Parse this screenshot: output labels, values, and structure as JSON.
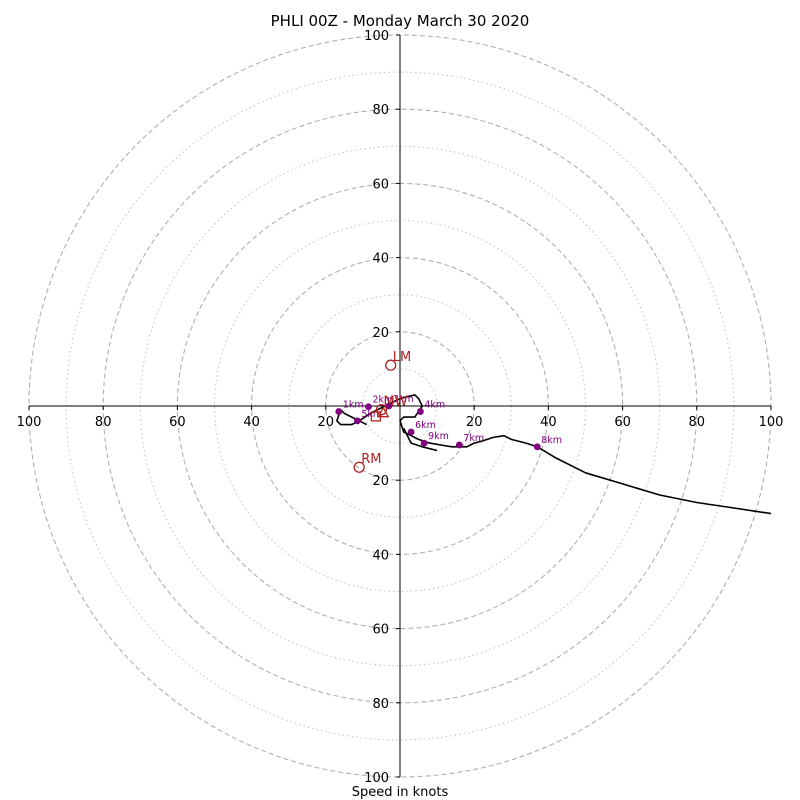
{
  "chart_data": {
    "type": "scatter",
    "subtype": "hodograph",
    "title": "PHLI 00Z - Monday March 30 2020",
    "xlabel": "Speed in knots",
    "xlim": [
      -100,
      100
    ],
    "ylim": [
      -100,
      100
    ],
    "ring_major": [
      20,
      40,
      60,
      80,
      100
    ],
    "ring_minor": [
      10,
      30,
      50,
      70,
      90
    ],
    "x_ticks": [
      -100,
      -80,
      -60,
      -40,
      -20,
      20,
      40,
      60,
      80,
      100
    ],
    "x_tick_labels": [
      "100",
      "80",
      "60",
      "40",
      "20",
      "20",
      "40",
      "60",
      "80",
      "100"
    ],
    "y_ticks": [
      100,
      80,
      60,
      40,
      20,
      -20,
      -40,
      -60,
      -80,
      -100
    ],
    "y_tick_labels": [
      "100",
      "80",
      "60",
      "40",
      "20",
      "20",
      "40",
      "60",
      "80",
      "100"
    ],
    "grid": true,
    "colors": {
      "trace": "#000000",
      "height_points": "#800080",
      "motion": "#b22222",
      "grid": "#b0b0b0"
    },
    "trace": {
      "u": [
        -9,
        -11,
        -13,
        -15,
        -16,
        -17,
        -16,
        -13,
        -11,
        -8,
        -6,
        -4,
        -2,
        0,
        2,
        4,
        5,
        6,
        4,
        1,
        0,
        1,
        3,
        5,
        8,
        11,
        14,
        16,
        18,
        20,
        22,
        25,
        28,
        30,
        34,
        37,
        42,
        50,
        60,
        70,
        80,
        90,
        100
      ],
      "v": [
        -5,
        -4,
        -3,
        -2,
        -1,
        -4,
        -5,
        -5,
        -4,
        -2,
        -1,
        0,
        1,
        2,
        2.5,
        3,
        2,
        0,
        -3,
        -3,
        -4,
        -7,
        -8,
        -9,
        -10,
        -10.5,
        -11,
        -11,
        -11,
        -10,
        -9.5,
        -8.5,
        -8,
        -9,
        -10,
        -11,
        -14,
        -18,
        -21,
        -24,
        -26,
        -27.5,
        -29
      ]
    },
    "trace_tail": {
      "u": [
        1,
        3,
        6,
        10
      ],
      "v": [
        -6,
        -10,
        -11,
        -12
      ]
    },
    "heights": [
      {
        "label": "1km",
        "u": -16.5,
        "v": -1.5
      },
      {
        "label": "2km",
        "u": -8.5,
        "v": -0.2
      },
      {
        "label": "3km",
        "u": -3,
        "v": 0
      },
      {
        "label": "4km",
        "u": 5.5,
        "v": -1.5
      },
      {
        "label": "5km",
        "u": -11.5,
        "v": -4
      },
      {
        "label": "6km",
        "u": 3,
        "v": -7
      },
      {
        "label": "7km",
        "u": 16,
        "v": -10.5
      },
      {
        "label": "8km",
        "u": 37,
        "v": -11
      },
      {
        "label": "9km",
        "u": 6.5,
        "v": -10
      }
    ],
    "storm_motion": [
      {
        "label": "LM",
        "u": -2.5,
        "v": 11,
        "marker": "circle"
      },
      {
        "label": "RM",
        "u": -11,
        "v": -16.5,
        "marker": "circle"
      },
      {
        "label": "MW",
        "u": -5,
        "v": -1,
        "marker": "circle"
      },
      {
        "label": "",
        "u": -6.5,
        "v": -2.8,
        "marker": "square"
      },
      {
        "label": "",
        "u": -4.5,
        "v": -1.8,
        "marker": "triangle"
      }
    ]
  }
}
